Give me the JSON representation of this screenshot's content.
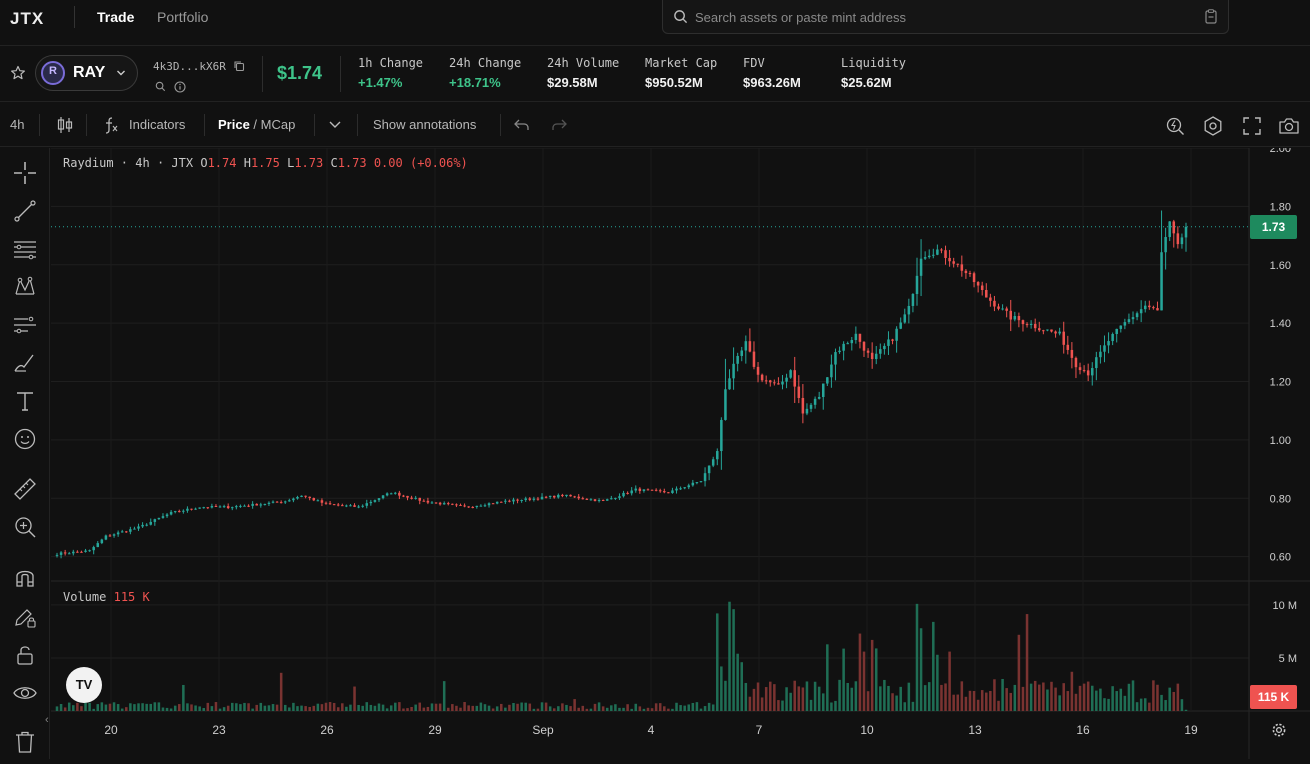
{
  "app": {
    "logo": "JTX"
  },
  "nav": {
    "tabs": [
      {
        "label": "Trade"
      },
      {
        "label": "Portfolio"
      }
    ]
  },
  "search": {
    "placeholder": "Search assets or paste mint address"
  },
  "token": {
    "symbol": "RAY",
    "logo_letter": "R",
    "address": "4k3D...kX6R",
    "price": "$1.74",
    "stats": [
      {
        "label": "1h Change",
        "value": "+1.47%",
        "positive": true
      },
      {
        "label": "24h Change",
        "value": "+18.71%",
        "positive": true
      },
      {
        "label": "24h Volume",
        "value": "$29.58M",
        "positive": false
      },
      {
        "label": "Market Cap",
        "value": "$950.52M",
        "positive": false
      },
      {
        "label": "FDV",
        "value": "$963.26M",
        "positive": false
      },
      {
        "label": "Liquidity",
        "value": "$25.62M",
        "positive": false
      }
    ]
  },
  "toolbar": {
    "interval": "4h",
    "indicators": "Indicators",
    "price_label": "Price",
    "mcap_label": "MCap",
    "slash": " / ",
    "annotations": "Show annotations",
    "icons": [
      "candles-icon",
      "fx-icon",
      "chevron-down-icon",
      "undo-icon",
      "redo-icon",
      "quick-search-icon",
      "settings-icon",
      "fullscreen-icon",
      "camera-icon"
    ]
  },
  "left_tools": [
    "crosshair-icon",
    "trendline-icon",
    "fib-lines-icon",
    "pattern-icon",
    "projection-icon",
    "brush-icon",
    "text-icon",
    "emoji-icon",
    "ruler-icon",
    "zoom-in-icon",
    "magnet-icon",
    "lock-pencil-icon",
    "lock-icon",
    "eye-icon",
    "trash-icon"
  ],
  "legend": {
    "name": "Raydium",
    "interval": "4h",
    "source": "JTX",
    "o_label": "O",
    "open": "1.74",
    "h_label": "H",
    "high": "1.75",
    "l_label": "L",
    "low": "1.73",
    "c_label": "C",
    "close": "1.73",
    "change": "0.00",
    "change_pct": "(+0.06%)"
  },
  "volume_legend": {
    "label": "Volume",
    "value": "115 K"
  },
  "price_tag": "1.73",
  "volume_tag": "115 K",
  "tv_logo": "TV",
  "colors": {
    "up": "#26a69a",
    "down": "#ef5350",
    "up_vol": "#1f6e55",
    "down_vol": "#7a3331",
    "price_tag": "#1e8a5e"
  },
  "chart_data": {
    "type": "candlestick",
    "interval": "4h",
    "y_ticks": [
      "2.00",
      "1.80",
      "1.60",
      "1.40",
      "1.20",
      "1.00",
      "0.80",
      "0.60"
    ],
    "y_range": [
      0.52,
      2.0
    ],
    "volume_ticks": [
      "10 M",
      "5 M"
    ],
    "volume_range": [
      0,
      11500000
    ],
    "x_ticks": [
      "20",
      "23",
      "26",
      "29",
      "Sep",
      "4",
      "7",
      "10",
      "13",
      "16",
      "19"
    ],
    "last_price": 1.73,
    "last_volume": 115000,
    "anchors": [
      {
        "i": 0,
        "p": 0.61
      },
      {
        "i": 8,
        "p": 0.62
      },
      {
        "i": 12,
        "p": 0.67
      },
      {
        "i": 20,
        "p": 0.7
      },
      {
        "i": 28,
        "p": 0.75
      },
      {
        "i": 35,
        "p": 0.77
      },
      {
        "i": 42,
        "p": 0.77
      },
      {
        "i": 50,
        "p": 0.78
      },
      {
        "i": 56,
        "p": 0.79
      },
      {
        "i": 60,
        "p": 0.81
      },
      {
        "i": 66,
        "p": 0.78
      },
      {
        "i": 74,
        "p": 0.77
      },
      {
        "i": 82,
        "p": 0.82
      },
      {
        "i": 90,
        "p": 0.79
      },
      {
        "i": 100,
        "p": 0.77
      },
      {
        "i": 110,
        "p": 0.79
      },
      {
        "i": 118,
        "p": 0.8
      },
      {
        "i": 124,
        "p": 0.81
      },
      {
        "i": 134,
        "p": 0.79
      },
      {
        "i": 142,
        "p": 0.83
      },
      {
        "i": 150,
        "p": 0.82
      },
      {
        "i": 158,
        "p": 0.86
      },
      {
        "i": 162,
        "p": 0.96
      },
      {
        "i": 164,
        "p": 1.18
      },
      {
        "i": 166,
        "p": 1.25
      },
      {
        "i": 169,
        "p": 1.33
      },
      {
        "i": 172,
        "p": 1.22
      },
      {
        "i": 177,
        "p": 1.18
      },
      {
        "i": 180,
        "p": 1.24
      },
      {
        "i": 183,
        "p": 1.09
      },
      {
        "i": 187,
        "p": 1.15
      },
      {
        "i": 191,
        "p": 1.3
      },
      {
        "i": 196,
        "p": 1.36
      },
      {
        "i": 200,
        "p": 1.27
      },
      {
        "i": 205,
        "p": 1.35
      },
      {
        "i": 209,
        "p": 1.45
      },
      {
        "i": 212,
        "p": 1.63
      },
      {
        "i": 216,
        "p": 1.65
      },
      {
        "i": 220,
        "p": 1.61
      },
      {
        "i": 224,
        "p": 1.56
      },
      {
        "i": 228,
        "p": 1.49
      },
      {
        "i": 234,
        "p": 1.42
      },
      {
        "i": 240,
        "p": 1.39
      },
      {
        "i": 246,
        "p": 1.36
      },
      {
        "i": 250,
        "p": 1.26
      },
      {
        "i": 253,
        "p": 1.23
      },
      {
        "i": 258,
        "p": 1.34
      },
      {
        "i": 262,
        "p": 1.4
      },
      {
        "i": 267,
        "p": 1.46
      },
      {
        "i": 270,
        "p": 1.44
      },
      {
        "i": 271,
        "p": 1.64
      },
      {
        "i": 273,
        "p": 1.74
      },
      {
        "i": 275,
        "p": 1.66
      },
      {
        "i": 277,
        "p": 1.73
      }
    ],
    "volume_spikes": [
      {
        "i": 162,
        "v": 9200000
      },
      {
        "i": 163,
        "v": 4200000
      },
      {
        "i": 165,
        "v": 10300000
      },
      {
        "i": 166,
        "v": 9600000
      },
      {
        "i": 167,
        "v": 5400000
      },
      {
        "i": 168,
        "v": 4600000
      },
      {
        "i": 197,
        "v": 7300000
      },
      {
        "i": 198,
        "v": 5600000
      },
      {
        "i": 200,
        "v": 6700000
      },
      {
        "i": 201,
        "v": 5900000
      },
      {
        "i": 211,
        "v": 10100000
      },
      {
        "i": 212,
        "v": 7800000
      },
      {
        "i": 215,
        "v": 8400000
      },
      {
        "i": 216,
        "v": 5300000
      },
      {
        "i": 219,
        "v": 5600000
      },
      {
        "i": 55,
        "v": 3600000
      }
    ]
  }
}
